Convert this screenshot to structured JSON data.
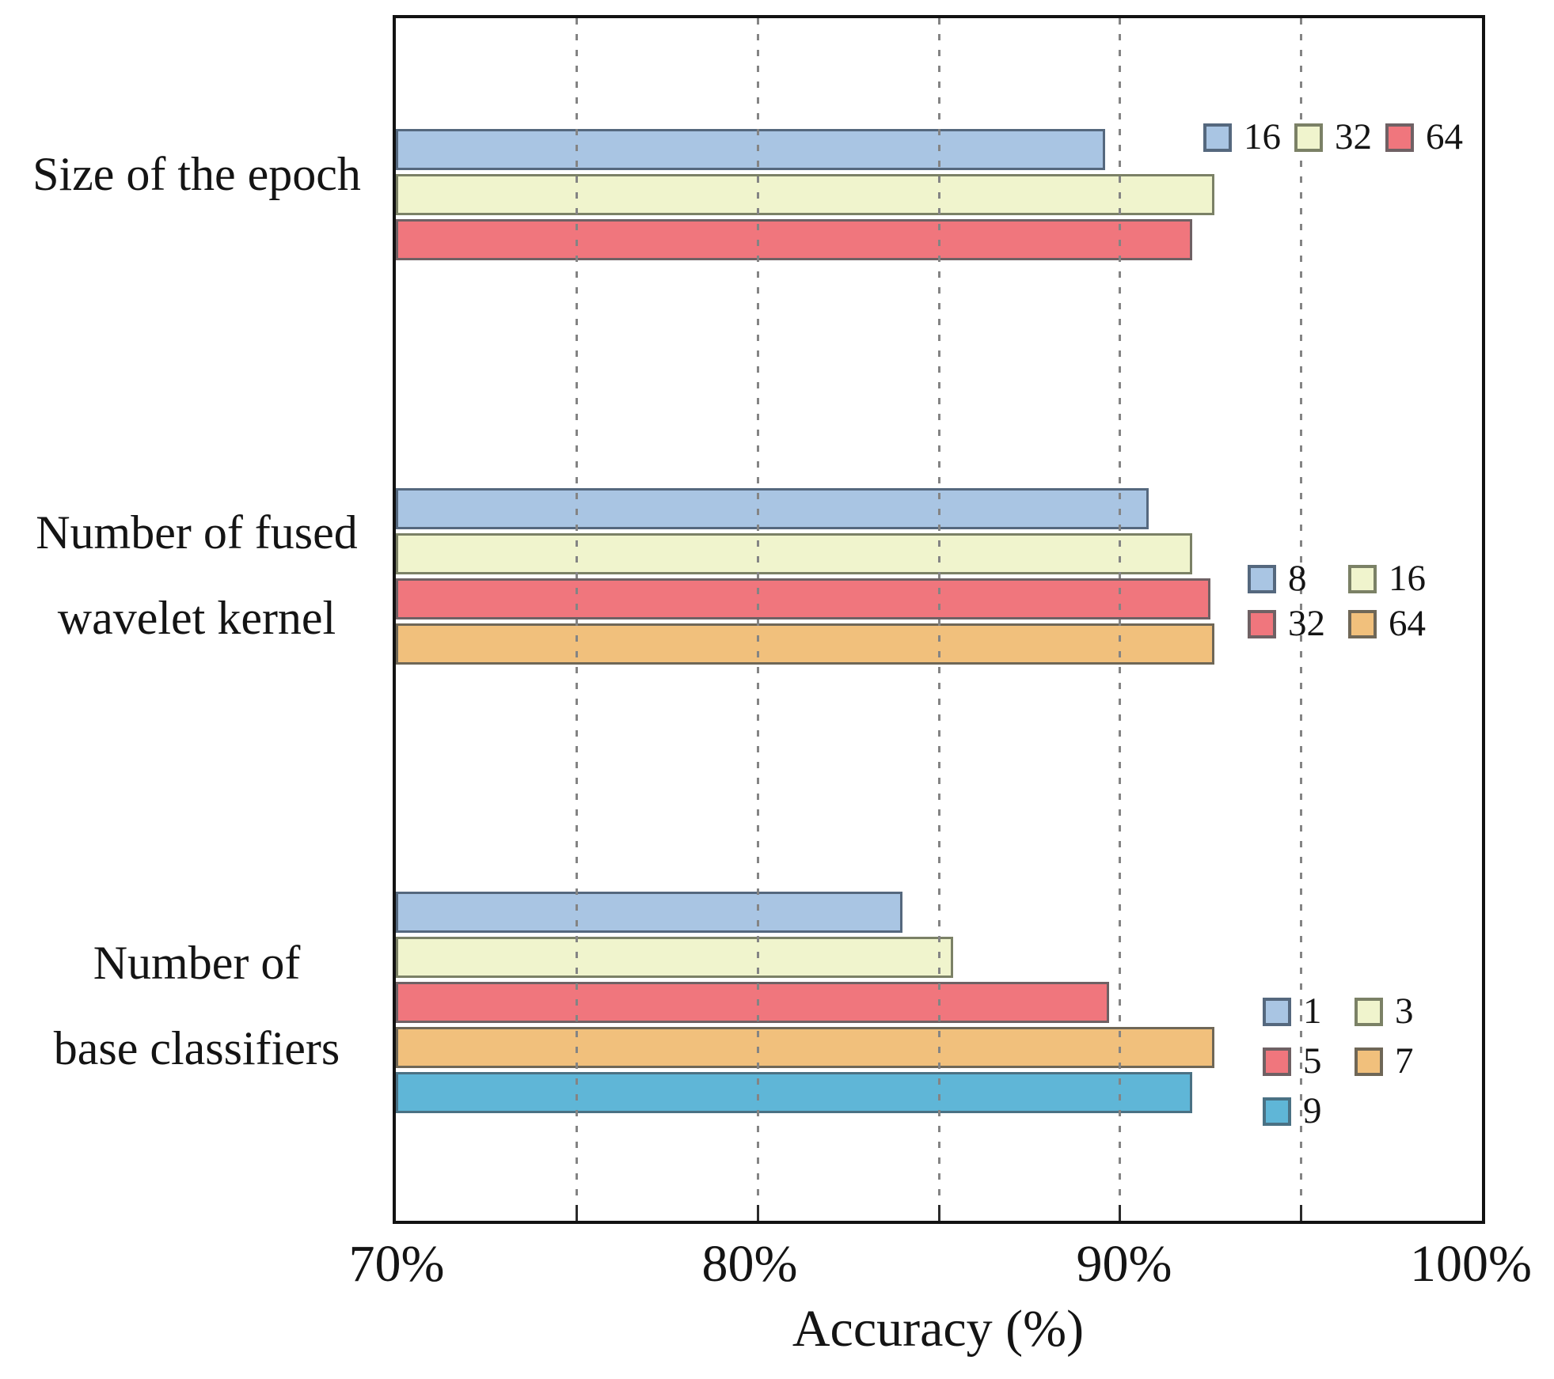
{
  "figure": {
    "xlabel": "Accuracy (%)"
  },
  "chart_data": {
    "type": "bar",
    "orientation": "horizontal",
    "xlabel": "Accuracy (%)",
    "xlim": [
      70,
      100
    ],
    "x_ticks": [
      "70%",
      "80%",
      "90%",
      "100%"
    ],
    "gridlines_pct": [
      75,
      80,
      85,
      90,
      95
    ],
    "grid_style": "dotted",
    "legend_position": "inside right, one legend block per group",
    "groups": [
      {
        "id": "epoch",
        "label_lines": [
          "Size of the epoch"
        ],
        "series": [
          {
            "name": "16",
            "color": "blue",
            "value": 89.6
          },
          {
            "name": "32",
            "color": "yellow",
            "value": 92.6
          },
          {
            "name": "64",
            "color": "red",
            "value": 92.0
          }
        ]
      },
      {
        "id": "kernel",
        "label_lines": [
          "Number of fused",
          "wavelet kernel"
        ],
        "series": [
          {
            "name": "8",
            "color": "blue",
            "value": 90.8
          },
          {
            "name": "16",
            "color": "yellow",
            "value": 92.0
          },
          {
            "name": "32",
            "color": "red",
            "value": 92.5
          },
          {
            "name": "64",
            "color": "orange",
            "value": 92.6
          }
        ]
      },
      {
        "id": "classifiers",
        "label_lines": [
          "Number of",
          "base classifiers"
        ],
        "series": [
          {
            "name": "1",
            "color": "blue",
            "value": 84.0
          },
          {
            "name": "3",
            "color": "yellow",
            "value": 85.4
          },
          {
            "name": "5",
            "color": "red",
            "value": 89.7
          },
          {
            "name": "7",
            "color": "orange",
            "value": 92.6
          },
          {
            "name": "9",
            "color": "teal",
            "value": 92.0
          }
        ]
      }
    ],
    "palette": {
      "blue": {
        "fill": "#a9c5e3",
        "edge": "#55687e"
      },
      "yellow": {
        "fill": "#f0f4cd",
        "edge": "#7b8166"
      },
      "red": {
        "fill": "#f0767d",
        "edge": "#6f6164"
      },
      "orange": {
        "fill": "#f1c07c",
        "edge": "#6f6757"
      },
      "teal": {
        "fill": "#5fb6d7",
        "edge": "#4a7184"
      },
      "frame": "#121212",
      "grid": "#848484",
      "text": "#141414"
    }
  }
}
